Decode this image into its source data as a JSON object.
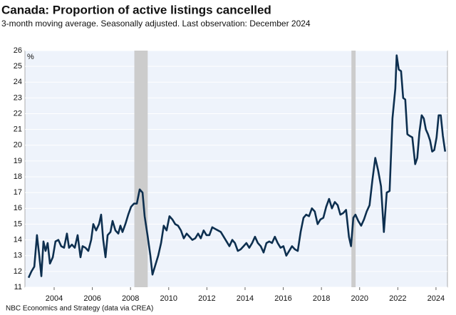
{
  "chart_data": {
    "type": "line",
    "title": "Canada: Proportion of active listings cancelled",
    "subtitle": "3-month moving average. Seasonally adjusted. Last observation: December 2024",
    "source": "NBC Economics and Strategy (data via CREA)",
    "y_unit": "%",
    "x": [
      2002.66,
      2002.81,
      2002.96,
      2003.1,
      2003.22,
      2003.33,
      2003.44,
      2003.55,
      2003.66,
      2003.78,
      2003.93,
      2004.07,
      2004.22,
      2004.37,
      2004.52,
      2004.67,
      2004.78,
      2004.93,
      2005.08,
      2005.23,
      2005.38,
      2005.49,
      2005.64,
      2005.79,
      2005.94,
      2006.05,
      2006.2,
      2006.35,
      2006.46,
      2006.57,
      2006.69,
      2006.8,
      2006.95,
      2007.06,
      2007.21,
      2007.36,
      2007.47,
      2007.58,
      2007.73,
      2007.88,
      2008.03,
      2008.18,
      2008.33,
      2008.48,
      2008.63,
      2008.74,
      2008.89,
      2009.04,
      2009.15,
      2009.3,
      2009.45,
      2009.6,
      2009.74,
      2009.89,
      2010.04,
      2010.19,
      2010.34,
      2010.49,
      2010.64,
      2010.79,
      2010.94,
      2011.09,
      2011.24,
      2011.39,
      2011.54,
      2011.68,
      2011.83,
      2011.98,
      2012.13,
      2012.28,
      2012.43,
      2012.58,
      2012.73,
      2012.88,
      2013.03,
      2013.18,
      2013.33,
      2013.47,
      2013.62,
      2013.77,
      2013.92,
      2014.07,
      2014.22,
      2014.37,
      2014.52,
      2014.67,
      2014.82,
      2014.97,
      2015.12,
      2015.27,
      2015.41,
      2015.56,
      2015.71,
      2015.86,
      2016.01,
      2016.16,
      2016.31,
      2016.46,
      2016.61,
      2016.76,
      2016.91,
      2017.06,
      2017.2,
      2017.35,
      2017.5,
      2017.65,
      2017.8,
      2017.95,
      2018.1,
      2018.25,
      2018.4,
      2018.55,
      2018.7,
      2018.85,
      2018.99,
      2019.14,
      2019.29,
      2019.44,
      2019.55,
      2019.67,
      2019.78,
      2019.93,
      2020.08,
      2020.23,
      2020.37,
      2020.52,
      2020.67,
      2020.82,
      2020.97,
      2021.12,
      2021.27,
      2021.42,
      2021.57,
      2021.72,
      2021.87,
      2021.94,
      2022.05,
      2022.17,
      2022.28,
      2022.39,
      2022.5,
      2022.61,
      2022.76,
      2022.91,
      2023.02,
      2023.13,
      2023.25,
      2023.36,
      2023.47,
      2023.58,
      2023.69,
      2023.8,
      2023.91,
      2024.03,
      2024.14,
      2024.25,
      2024.36,
      2024.48
    ],
    "series": [
      {
        "color": "#0d2f4f",
        "values": [
          11.6,
          12.0,
          12.3,
          14.3,
          13.0,
          11.7,
          13.9,
          13.3,
          13.8,
          12.5,
          12.9,
          13.9,
          14.0,
          13.6,
          13.5,
          14.4,
          13.5,
          13.7,
          13.5,
          14.3,
          12.9,
          13.6,
          13.5,
          13.3,
          14.0,
          15.0,
          14.6,
          15.0,
          15.6,
          14.0,
          12.9,
          14.3,
          14.5,
          15.2,
          14.6,
          14.4,
          14.9,
          14.5,
          15.0,
          15.6,
          16.1,
          16.3,
          16.3,
          17.2,
          17.0,
          15.5,
          14.3,
          13.0,
          11.8,
          12.4,
          13.0,
          13.8,
          14.9,
          14.6,
          15.5,
          15.3,
          15.0,
          14.9,
          14.6,
          14.1,
          14.4,
          14.2,
          14.0,
          14.1,
          14.4,
          14.1,
          14.6,
          14.3,
          14.3,
          14.8,
          14.7,
          14.6,
          14.5,
          14.2,
          13.9,
          13.6,
          14.0,
          13.8,
          13.3,
          13.4,
          13.6,
          13.8,
          13.5,
          13.8,
          14.2,
          13.8,
          13.6,
          13.2,
          13.8,
          13.9,
          13.8,
          14.2,
          13.8,
          13.5,
          13.6,
          13.0,
          13.3,
          13.6,
          13.4,
          13.3,
          14.5,
          15.4,
          15.6,
          15.5,
          16.0,
          15.8,
          15.0,
          15.3,
          15.4,
          16.1,
          16.6,
          16.0,
          16.4,
          16.2,
          15.6,
          15.7,
          15.9,
          14.2,
          13.6,
          15.4,
          15.6,
          15.2,
          14.9,
          15.3,
          15.8,
          16.2,
          17.8,
          19.2,
          18.4,
          17.4,
          14.5,
          17.0,
          17.1,
          21.7,
          23.6,
          25.7,
          24.8,
          24.7,
          23.0,
          22.9,
          20.7,
          20.6,
          20.5,
          18.8,
          19.2,
          20.8,
          21.9,
          21.7,
          21.0,
          20.7,
          20.3,
          19.6,
          19.7,
          20.5,
          21.9,
          21.9,
          20.6,
          19.6
        ]
      }
    ],
    "shaded_periods": [
      [
        2008.2,
        2008.9
      ],
      [
        2019.57,
        2019.79
      ]
    ],
    "shade_color": "#cccccc",
    "xlim": [
      2002.47,
      2024.6
    ],
    "xticks": [
      2004,
      2006,
      2008,
      2010,
      2012,
      2014,
      2016,
      2018,
      2020,
      2022,
      2024
    ],
    "ylim": [
      11,
      26
    ],
    "yticks": [
      11,
      12,
      13,
      14,
      15,
      16,
      17,
      18,
      19,
      20,
      21,
      22,
      23,
      24,
      25,
      26
    ],
    "grid": true
  }
}
